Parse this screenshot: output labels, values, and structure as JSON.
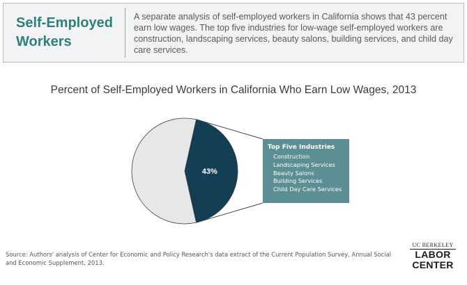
{
  "header": {
    "title": "Self-Employed Workers",
    "description": "A separate analysis of self-employed workers in California shows that 43 percent earn low wages. The top five industries for low-wage self-employed workers are construction, landscaping services, beauty salons, building services, and child day care services."
  },
  "chart_data": {
    "type": "pie",
    "title": "Percent of Self-Employed Workers in California Who Earn Low Wages, 2013",
    "slices": [
      {
        "name": "",
        "value": 43,
        "label": "43%",
        "color": "#133f55"
      },
      {
        "name": "",
        "value": 57,
        "label": "",
        "color": "#e6e7e9"
      }
    ],
    "callout": {
      "title": "Top Five Industries",
      "items": [
        "Construction",
        "Landscaping Services",
        "Beauty Salons",
        "Building Services",
        "Child Day Care Services"
      ],
      "color": "#5c8f93"
    }
  },
  "source": "Source: Authors' analysis of Center for Economic and Policy Research's data extract of the Current Population Survey, Annual Social and Economic Supplement, 2013.",
  "logo": {
    "top": "UC BERKELEY",
    "line1": "LABOR",
    "line2": "CENTER"
  }
}
